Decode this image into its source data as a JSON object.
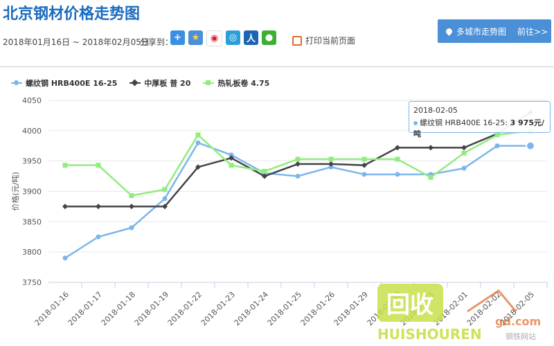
{
  "page_title": "北京钢材价格走势图",
  "date_range": "2018年01月16日 ~ 2018年02月05日",
  "share_label": "分享到：",
  "share_icons": [
    "qzone-plus-icon",
    "star-icon",
    "weibo-icon",
    "tencent-weibo-icon",
    "renren-icon",
    "wechat-icon"
  ],
  "print_label": "打印当前页面",
  "multi_city": {
    "label": "多城市走势图",
    "action": "前往>>"
  },
  "tooltip": {
    "date": "2018-02-05",
    "series": "螺纹钢 HRB400E 16-25:",
    "value": "3 975元/吨"
  },
  "watermark": {
    "big": "回收",
    "mid": "gd.com",
    "brand": "HUISHOUREN",
    "site": "钢铁网站"
  },
  "colors": {
    "accent": "#1a6bbf",
    "rebar": "#7cb5ec",
    "plate": "#434348",
    "coil": "#90ed7d"
  },
  "chart_data": {
    "type": "line",
    "categories": [
      "2018-01-16",
      "2018-01-17",
      "2018-01-18",
      "2018-01-19",
      "2018-01-22",
      "2018-01-23",
      "2018-01-24",
      "2018-01-25",
      "2018-01-26",
      "2018-01-29",
      "2018-01-30",
      "2018-01-31",
      "2018-02-01",
      "2018-02-02",
      "2018-02-05"
    ],
    "ylabel": "价格(元/吨)",
    "ylim": [
      3750,
      4050
    ],
    "yticks": [
      3750,
      3800,
      3850,
      3900,
      3950,
      4000,
      4050
    ],
    "grid": true,
    "legend": "top-left",
    "series": [
      {
        "name": "螺纹钢 HRB400E 16-25",
        "color": "#7cb5ec",
        "marker": "circle",
        "values": [
          3790,
          3825,
          3840,
          3888,
          3980,
          3960,
          3930,
          3925,
          3940,
          3928,
          3928,
          3928,
          3938,
          3975,
          3975
        ]
      },
      {
        "name": "中厚板 普 20",
        "color": "#434348",
        "marker": "diamond",
        "values": [
          3875,
          3875,
          3875,
          3875,
          3940,
          3955,
          3925,
          3945,
          3945,
          3943,
          3972,
          3972,
          3972,
          3995,
          4030
        ]
      },
      {
        "name": "热轧板卷 4.75",
        "color": "#90ed7d",
        "marker": "square",
        "values": [
          3943,
          3943,
          3893,
          3903,
          3993,
          3943,
          3933,
          3953,
          3953,
          3953,
          3953,
          3923,
          3963,
          3993,
          4000
        ]
      }
    ]
  }
}
